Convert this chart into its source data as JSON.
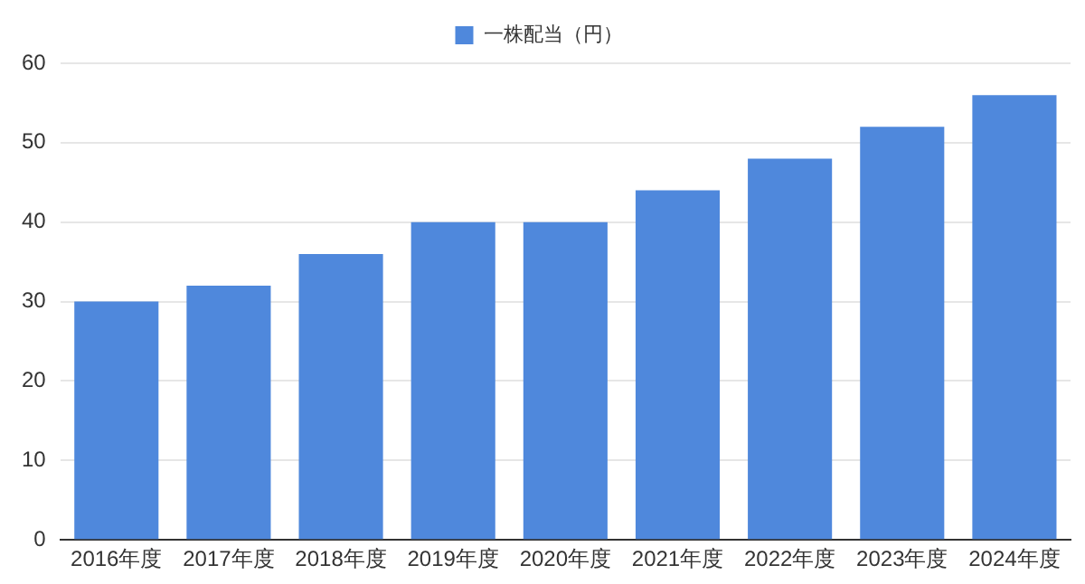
{
  "chart_data": {
    "type": "bar",
    "categories": [
      "2016年度",
      "2017年度",
      "2018年度",
      "2019年度",
      "2020年度",
      "2021年度",
      "2022年度",
      "2023年度",
      "2024年度"
    ],
    "series": [
      {
        "name": "一株配当（円）",
        "color": "#4f88dc",
        "values": [
          30,
          32,
          36,
          40,
          40,
          44,
          48,
          52,
          56
        ]
      }
    ],
    "ylim": [
      0,
      60
    ],
    "yticks": [
      0,
      10,
      20,
      30,
      40,
      50,
      60
    ],
    "grid": "y",
    "legend": "top"
  }
}
